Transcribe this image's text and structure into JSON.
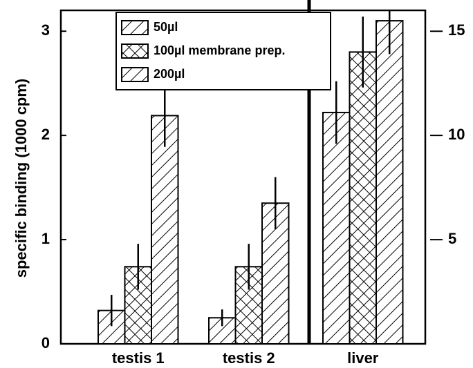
{
  "chart_data": {
    "type": "bar",
    "ylabel": "specific binding (1000 cpm)",
    "categories": [
      "testis 1",
      "testis 2",
      "liver"
    ],
    "category_axes": [
      "y",
      "y",
      "y2"
    ],
    "series": [
      {
        "name": "50µl",
        "color": "#000000",
        "pattern": "diagonal",
        "values": [
          0.32,
          0.25,
          11.1
        ],
        "errors": [
          0.15,
          0.08,
          1.5
        ]
      },
      {
        "name": "100µl membrane prep.",
        "color": "#000000",
        "pattern": "crosshatch",
        "values": [
          0.74,
          0.74,
          14.0
        ],
        "errors": [
          0.22,
          0.22,
          1.7
        ]
      },
      {
        "name": "200µl",
        "color": "#000000",
        "pattern": "diagonal",
        "values": [
          2.19,
          1.35,
          15.5
        ],
        "errors": [
          0.3,
          0.25,
          1.6
        ]
      }
    ],
    "ylim": [
      0,
      3.2
    ],
    "yticks": [
      0,
      1,
      2,
      3
    ],
    "y2lim": [
      0,
      16
    ],
    "y2ticks": [
      5,
      10,
      15
    ],
    "legend": "top"
  }
}
